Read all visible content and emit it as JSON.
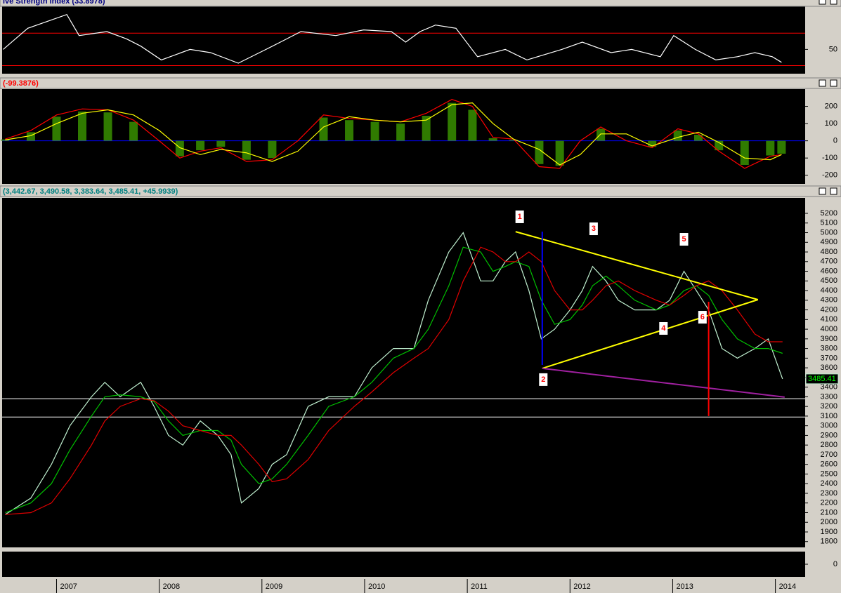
{
  "chart_data": [
    {
      "type": "line",
      "title": "ive Strength Index (33.8978)",
      "title_color": "#000080",
      "x": [
        2006.48,
        2006.72,
        2007.1,
        2007.22,
        2007.49,
        2007.68,
        2007.82,
        2008.02,
        2008.3,
        2008.5,
        2008.77,
        2009.04,
        2009.18,
        2009.38,
        2009.72,
        2009.99,
        2010.26,
        2010.4,
        2010.54,
        2010.69,
        2010.89,
        2011.1,
        2011.37,
        2011.58,
        2011.92,
        2012.12,
        2012.4,
        2012.6,
        2012.88,
        2013.01,
        2013.22,
        2013.42,
        2013.63,
        2013.8,
        2013.97,
        2014.06
      ],
      "series": [
        {
          "color": "#ffffff",
          "values": [
            50,
            76,
            93,
            67,
            72,
            63,
            54,
            37,
            50,
            46,
            33,
            50,
            59,
            72,
            67,
            74,
            72,
            59,
            72,
            80,
            76,
            41,
            50,
            37,
            50,
            59,
            46,
            50,
            41,
            67,
            50,
            37,
            41,
            46,
            41,
            34
          ]
        }
      ],
      "xlim": [
        2006.47,
        2014.29
      ],
      "ylim": [
        20,
        104
      ],
      "yticks": [
        50
      ],
      "hlines": [
        {
          "y": 70,
          "color": "#ff0000"
        },
        {
          "y": 30,
          "color": "#ff0000"
        }
      ]
    },
    {
      "type": "line",
      "title": "(-99.3876)",
      "title_color": "#ff0000",
      "x": [
        2006.5,
        2006.75,
        2007,
        2007.25,
        2007.5,
        2007.75,
        2008,
        2008.2,
        2008.4,
        2008.6,
        2008.85,
        2009.1,
        2009.35,
        2009.6,
        2009.85,
        2010.1,
        2010.35,
        2010.6,
        2010.85,
        2011.05,
        2011.25,
        2011.45,
        2011.7,
        2011.9,
        2012.1,
        2012.3,
        2012.55,
        2012.8,
        2013.05,
        2013.25,
        2013.45,
        2013.7,
        2013.95,
        2014.06
      ],
      "series": [
        {
          "type": "bar",
          "color": "#3c9a00",
          "values": [
            8,
            50,
            140,
            170,
            165,
            110,
            0,
            -90,
            -55,
            -35,
            -110,
            -100,
            0,
            135,
            120,
            110,
            100,
            145,
            220,
            180,
            15,
            5,
            -135,
            -145,
            0,
            70,
            0,
            -35,
            60,
            35,
            -55,
            -140,
            -85,
            -75
          ]
        },
        {
          "color": "#ff0000",
          "values": [
            10,
            60,
            150,
            185,
            180,
            120,
            0,
            -100,
            -60,
            -40,
            -120,
            -110,
            0,
            150,
            130,
            120,
            110,
            160,
            240,
            200,
            20,
            10,
            -150,
            -160,
            0,
            80,
            0,
            -40,
            70,
            40,
            -60,
            -160,
            -90,
            -80
          ]
        },
        {
          "color": "#ffff00",
          "values": [
            5,
            30,
            100,
            160,
            180,
            150,
            60,
            -40,
            -80,
            -50,
            -70,
            -120,
            -60,
            80,
            140,
            120,
            110,
            120,
            210,
            220,
            100,
            10,
            -50,
            -140,
            -80,
            40,
            40,
            -30,
            20,
            50,
            -10,
            -100,
            -110,
            -80
          ]
        }
      ],
      "xlim": [
        2006.47,
        2014.29
      ],
      "ylim": [
        -250,
        300
      ],
      "yticks": [
        -200,
        -100,
        0,
        100,
        200
      ],
      "hlines": [
        {
          "y": 0,
          "color": "#0000ff"
        }
      ]
    },
    {
      "type": "line",
      "title": "(3,442.67, 3,490.58, 3,383.64, 3,485.41, +45.9939)",
      "title_color": "#008080",
      "x": [
        2006.5,
        2006.75,
        2006.95,
        2007.13,
        2007.34,
        2007.47,
        2007.62,
        2007.82,
        2007.95,
        2008.09,
        2008.23,
        2008.4,
        2008.57,
        2008.7,
        2008.8,
        2008.97,
        2009.1,
        2009.24,
        2009.45,
        2009.65,
        2009.9,
        2010.07,
        2010.28,
        2010.48,
        2010.62,
        2010.82,
        2010.96,
        2011.13,
        2011.25,
        2011.37,
        2011.47,
        2011.6,
        2011.72,
        2011.85,
        2012,
        2012.12,
        2012.22,
        2012.35,
        2012.47,
        2012.63,
        2012.84,
        2012.97,
        2013.11,
        2013.23,
        2013.35,
        2013.48,
        2013.63,
        2013.8,
        2013.93,
        2014.07
      ],
      "series": [
        {
          "color": "#c0f0d0",
          "tag": true,
          "values": [
            2080,
            2250,
            2600,
            3000,
            3300,
            3450,
            3300,
            3450,
            3200,
            2900,
            2800,
            3050,
            2900,
            2700,
            2200,
            2350,
            2600,
            2700,
            3200,
            3300,
            3300,
            3600,
            3800,
            3800,
            4300,
            4800,
            5000,
            4500,
            4500,
            4700,
            4800,
            4400,
            3900,
            4000,
            4200,
            4400,
            4650,
            4500,
            4300,
            4200,
            4200,
            4300,
            4600,
            4400,
            4200,
            3800,
            3700,
            3800,
            3900,
            3485.41
          ]
        },
        {
          "color": "#00c000",
          "values": [
            2100,
            2200,
            2400,
            2750,
            3100,
            3300,
            3320,
            3300,
            3250,
            3050,
            2900,
            2950,
            2950,
            2850,
            2600,
            2400,
            2450,
            2600,
            2900,
            3200,
            3300,
            3450,
            3700,
            3800,
            4000,
            4450,
            4850,
            4800,
            4600,
            4650,
            4700,
            4650,
            4300,
            4050,
            4100,
            4250,
            4450,
            4550,
            4450,
            4300,
            4200,
            4250,
            4400,
            4450,
            4350,
            4100,
            3900,
            3800,
            3800,
            3750
          ]
        },
        {
          "color": "#e00000",
          "values": [
            2080,
            2100,
            2200,
            2450,
            2800,
            3050,
            3200,
            3280,
            3260,
            3150,
            3000,
            2950,
            2900,
            2900,
            2800,
            2600,
            2420,
            2450,
            2650,
            2950,
            3200,
            3350,
            3550,
            3700,
            3800,
            4100,
            4500,
            4850,
            4800,
            4700,
            4700,
            4800,
            4700,
            4400,
            4200,
            4200,
            4300,
            4450,
            4500,
            4400,
            4300,
            4250,
            4350,
            4450,
            4500,
            4400,
            4200,
            3950,
            3870,
            3870
          ]
        }
      ],
      "xlim": [
        2006.47,
        2014.29
      ],
      "ylim": [
        1740,
        5360
      ],
      "yticks": [
        1800,
        1900,
        2000,
        2100,
        2200,
        2300,
        2400,
        2500,
        2600,
        2700,
        2800,
        2900,
        3000,
        3100,
        3200,
        3300,
        3400,
        3500,
        3600,
        3700,
        3800,
        3900,
        4000,
        4100,
        4200,
        4300,
        4400,
        4500,
        4600,
        4700,
        4800,
        4900,
        5000,
        5100,
        5200
      ],
      "hlines": [
        {
          "y": 3280,
          "color": "#ffffff"
        },
        {
          "y": 3090,
          "color": "#ffffff"
        }
      ],
      "lines": [
        {
          "x": [
            2011.47,
            2013.83
          ],
          "y": [
            5010,
            4306
          ],
          "color": "#ffff00"
        },
        {
          "x": [
            2011.73,
            2013.83
          ],
          "y": [
            3594,
            4306
          ],
          "color": "#ffff00"
        },
        {
          "x": [
            2011.73,
            2011.73
          ],
          "y": [
            5010,
            3630
          ],
          "color": "#0000ff"
        },
        {
          "x": [
            2011.73,
            2014.09
          ],
          "y": [
            3594,
            3296
          ],
          "color": "#a020a0"
        },
        {
          "x": [
            2013.35,
            2013.35
          ],
          "y": [
            4284,
            3100
          ],
          "color": "#ff0000"
        }
      ],
      "annotations": [
        {
          "text": "1",
          "x": 2011.51,
          "y": 5164,
          "color": "#ff0000"
        },
        {
          "text": "2",
          "x": 2011.74,
          "y": 3478,
          "color": "#ff0000"
        },
        {
          "text": "3",
          "x": 2012.23,
          "y": 5040,
          "color": "#ff0000"
        },
        {
          "text": "4",
          "x": 2012.91,
          "y": 4008,
          "color": "#ff0000"
        },
        {
          "text": "5",
          "x": 2013.11,
          "y": 4931,
          "color": "#ff0000"
        },
        {
          "text": "6",
          "x": 2013.29,
          "y": 4124,
          "color": "#ff0000"
        }
      ]
    },
    {
      "type": "line",
      "x": [],
      "series": [],
      "xlim": [
        2006.47,
        2014.29
      ],
      "ylim": [
        -1,
        1
      ],
      "yticks": [
        0
      ],
      "xticks": [
        2007,
        2008,
        2009,
        2010,
        2011,
        2012,
        2013,
        2014
      ]
    }
  ]
}
